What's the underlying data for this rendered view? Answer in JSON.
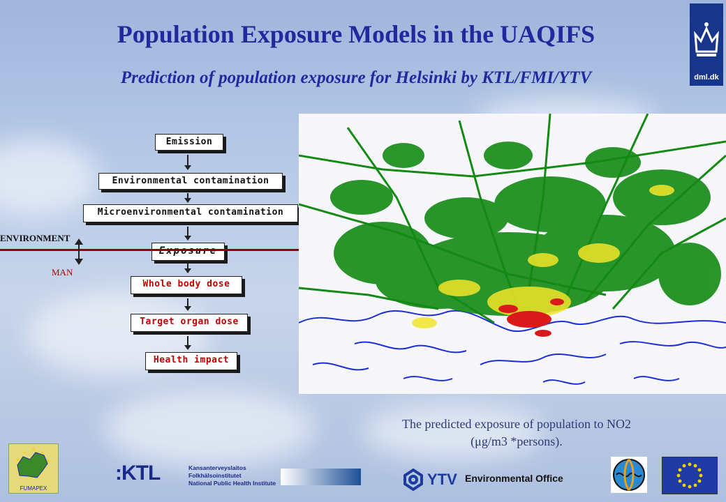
{
  "slide": {
    "title": "Population Exposure Models in the UAQIFS",
    "subtitle": "Prediction of population exposure for Helsinki by KTL/FMI/YTV"
  },
  "flowchart": {
    "steps": [
      {
        "label": "Emission"
      },
      {
        "label": "Environmental contamination"
      },
      {
        "label": "Microenvironmental contamination"
      },
      {
        "label": "Exposure"
      },
      {
        "label": "Whole body dose"
      },
      {
        "label": "Target organ dose"
      },
      {
        "label": "Health impact"
      }
    ],
    "environment_label": "ENVIRONMENT",
    "man_label": "MAN"
  },
  "map": {
    "caption_line1": "The predicted exposure of population to NO2",
    "caption_line2": "(μg/m3 *persons)."
  },
  "logos": {
    "dmi": "dml.dk",
    "fumapex": "FUMAPEX",
    "ktl_short": ":KTL",
    "ktl_lines": [
      "Kansanterveyslaitos",
      "Folkhälsoinstitutet",
      "National Public Health Institute"
    ],
    "ytv": "YTV",
    "environmental_office": "Environmental Office"
  },
  "colors": {
    "title": "#1f2a9e",
    "divider": "#8b0000",
    "map_water": "#1b2fd6",
    "map_green": "#138a13",
    "map_yellow": "#f2e52a",
    "map_red": "#d81a1a"
  }
}
